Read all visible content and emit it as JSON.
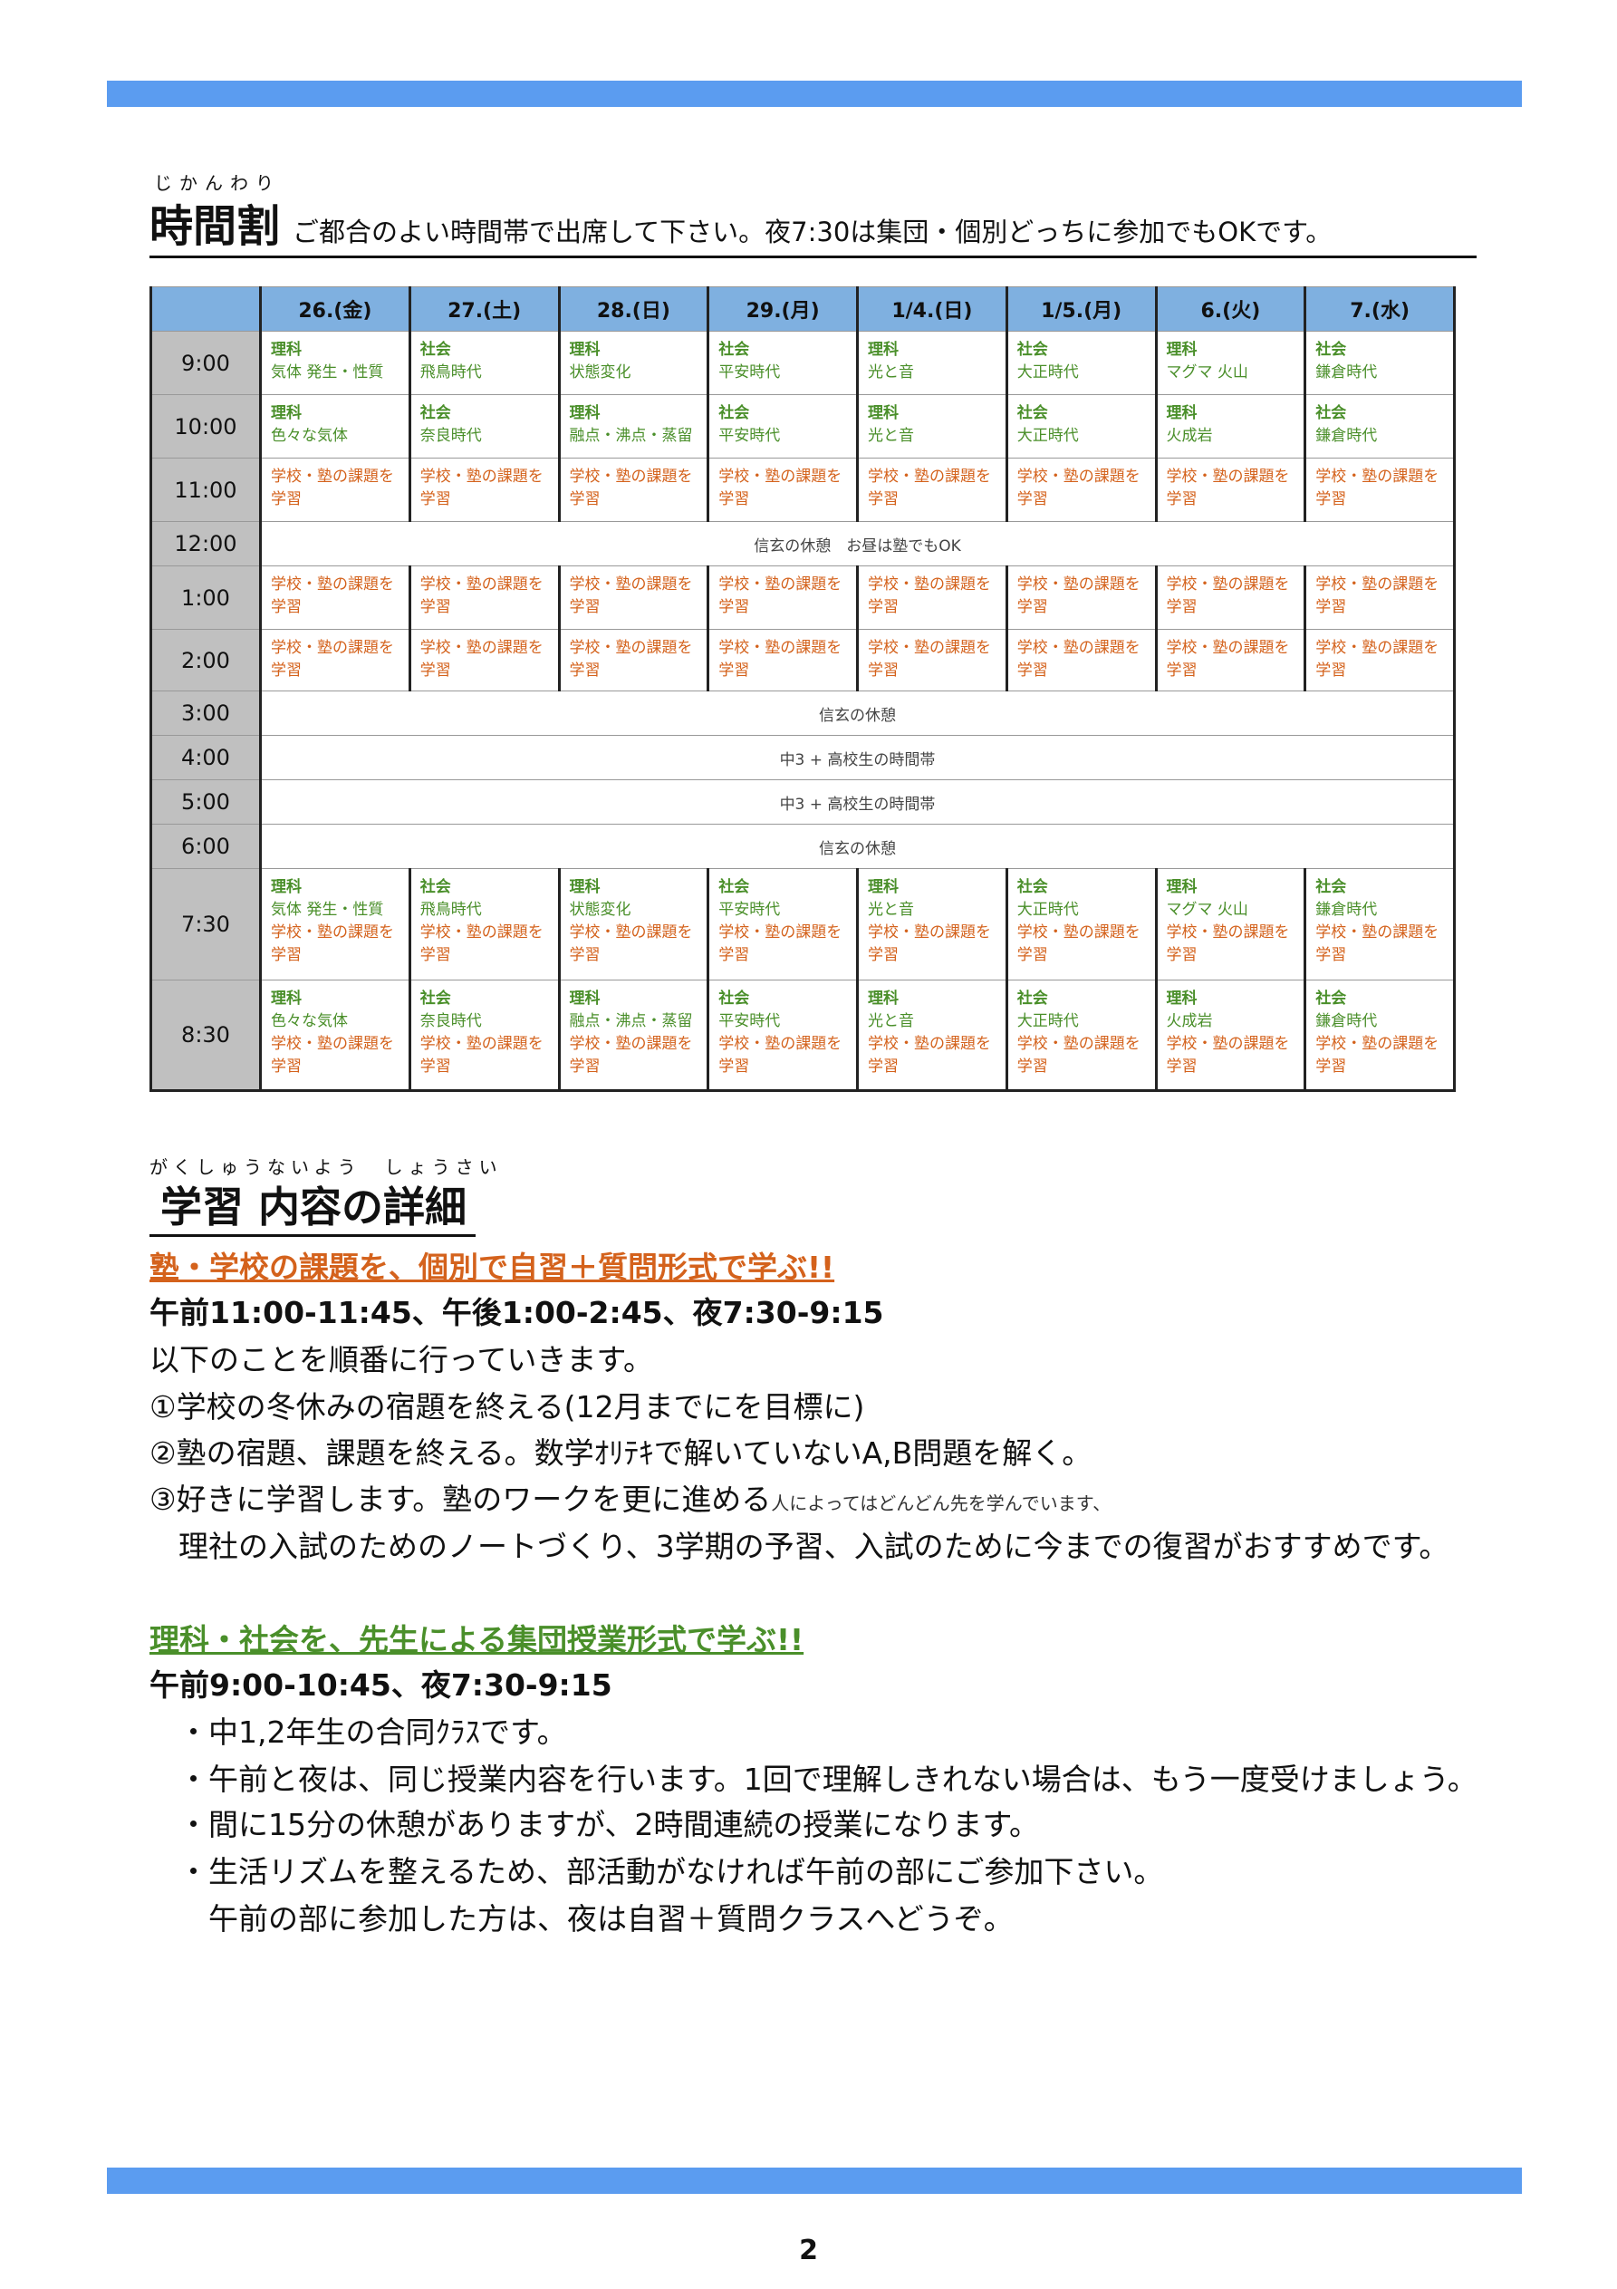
{
  "header": {
    "ruby": "じかんわり",
    "title": "時間割",
    "subtitle": "ご都合のよい時間帯で出席して下さい。夜7:30は集団・個別どっちに参加でもOKです。"
  },
  "timetable": {
    "days": [
      "26.(金)",
      "27.(土)",
      "28.(日)",
      "29.(月)",
      "1/4.(日)",
      "1/5.(月)",
      "6.(火)",
      "7.(水)"
    ],
    "rows": [
      {
        "time": "9:00",
        "cells": [
          [
            "理科",
            "気体 発生・性質"
          ],
          [
            "社会",
            "飛鳥時代"
          ],
          [
            "理科",
            "状態変化"
          ],
          [
            "社会",
            "平安時代"
          ],
          [
            "理科",
            "光と音"
          ],
          [
            "社会",
            "大正時代"
          ],
          [
            "理科",
            "マグマ 火山"
          ],
          [
            "社会",
            "鎌倉時代"
          ]
        ]
      },
      {
        "time": "10:00",
        "cells": [
          [
            "理科",
            "色々な気体"
          ],
          [
            "社会",
            "奈良時代"
          ],
          [
            "理科",
            "融点・沸点・蒸留"
          ],
          [
            "社会",
            "平安時代"
          ],
          [
            "理科",
            "光と音"
          ],
          [
            "社会",
            "大正時代"
          ],
          [
            "理科",
            "火成岩"
          ],
          [
            "社会",
            "鎌倉時代"
          ]
        ]
      },
      {
        "time": "11:00",
        "study": true
      },
      {
        "time": "12:00",
        "span": "信玄の休憩　お昼は塾でもOK"
      },
      {
        "time": "1:00",
        "study": true
      },
      {
        "time": "2:00",
        "study": true
      },
      {
        "time": "3:00",
        "span": "信玄の休憩"
      },
      {
        "time": "4:00",
        "span": "中3 + 高校生の時間帯"
      },
      {
        "time": "5:00",
        "span": "中3 + 高校生の時間帯"
      },
      {
        "time": "6:00",
        "span": "信玄の休憩"
      },
      {
        "time": "7:30",
        "cells": [
          [
            "理科",
            "気体 発生・性質"
          ],
          [
            "社会",
            "飛鳥時代"
          ],
          [
            "理科",
            "状態変化"
          ],
          [
            "社会",
            "平安時代"
          ],
          [
            "理科",
            "光と音"
          ],
          [
            "社会",
            "大正時代"
          ],
          [
            "理科",
            "マグマ 火山"
          ],
          [
            "社会",
            "鎌倉時代"
          ]
        ],
        "withStudy": true
      },
      {
        "time": "8:30",
        "cells": [
          [
            "理科",
            "色々な気体"
          ],
          [
            "社会",
            "奈良時代"
          ],
          [
            "理科",
            "融点・沸点・蒸留"
          ],
          [
            "社会",
            "平安時代"
          ],
          [
            "理科",
            "光と音"
          ],
          [
            "社会",
            "大正時代"
          ],
          [
            "理科",
            "火成岩"
          ],
          [
            "社会",
            "鎌倉時代"
          ]
        ],
        "withStudy": true
      }
    ],
    "study_text": [
      "学校・塾の課題を",
      "学習"
    ]
  },
  "details": {
    "ruby": "がくしゅうないよう　しょうさい",
    "title": "学習 内容の詳細",
    "individual": {
      "heading": "塾・学校の課題を、個別で自習＋質問形式で学ぶ!!",
      "times": "午前11:00-11:45、午後1:00-2:45、夜7:30-9:15",
      "intro": "以下のことを順番に行っていきます。",
      "item1": "①学校の冬休みの宿題を終える(12月までにを目標に)",
      "item2": "②塾の宿題、課題を終える。数学ｵﾘﾃｷで解いていないA,B問題を解く。",
      "item3": "③好きに学習します。塾のワークを更に進める",
      "item3_note": "人によってはどんどん先を学んでいます、",
      "item3_cont": "理社の入試のためのノートづくり、3学期の予習、入試のために今までの復習がおすすめです。"
    },
    "group": {
      "heading": "理科・社会を、先生による集団授業形式で学ぶ!!",
      "times": "午前9:00-10:45、夜7:30-9:15",
      "bullets": [
        "・中1,2年生の合同ｸﾗｽです。",
        "・午前と夜は、同じ授業内容を行います。1回で理解しきれない場合は、もう一度受けましょう。",
        "・間に15分の休憩がありますが、2時間連続の授業になります。",
        "・生活リズムを整えるため、部活動がなければ午前の部にご参加下さい。",
        "　午前の部に参加した方は、夜は自習＋質問クラスへどうぞ。"
      ]
    }
  },
  "footer": {
    "page_number": "2"
  },
  "colors": {
    "bar": "#5b9cf0",
    "header_bg": "#7fb0e0",
    "time_bg": "#c0c0c0",
    "science_social": "#4a8f2a",
    "study": "#d4621c"
  }
}
